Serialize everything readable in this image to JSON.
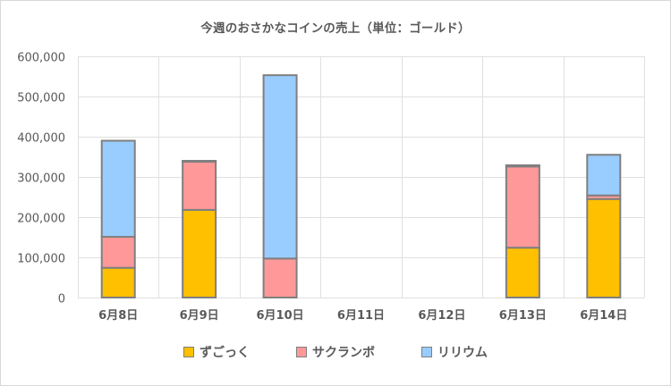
{
  "chart_data": {
    "type": "bar",
    "stacked": true,
    "title": "今週のおさかなコインの売上（単位：ゴールド）",
    "xlabel": "",
    "ylabel": "",
    "categories": [
      "6月8日",
      "6月9日",
      "6月10日",
      "6月11日",
      "6月12日",
      "6月13日",
      "6月14日"
    ],
    "series": [
      {
        "name": "ずごっく",
        "color": "#FFC000",
        "values": [
          74000,
          218000,
          0,
          0,
          0,
          124000,
          245000
        ]
      },
      {
        "name": "サクランボ",
        "color": "#FF9999",
        "values": [
          77000,
          120000,
          97000,
          0,
          0,
          202000,
          9000
        ]
      },
      {
        "name": "リリウム",
        "color": "#99CCFF",
        "values": [
          239000,
          2000,
          456000,
          0,
          0,
          3000,
          101000
        ]
      }
    ],
    "ylim": [
      0,
      600000
    ],
    "yticks": [
      0,
      100000,
      200000,
      300000,
      400000,
      500000,
      600000
    ],
    "ytick_labels": [
      "0",
      "100,000",
      "200,000",
      "300,000",
      "400,000",
      "500,000",
      "600,000"
    ],
    "grid": true,
    "legend_position": "bottom",
    "bar_border_color": "#7F7F7F",
    "grid_color": "#E0E0E0"
  }
}
